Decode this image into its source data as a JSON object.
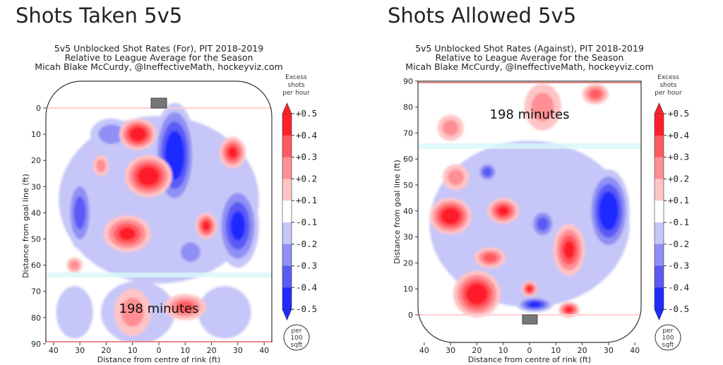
{
  "colorbar": {
    "title_lines": [
      "Excess",
      "shots",
      "per hour"
    ],
    "ticks": [
      "+0.5",
      "+0.4",
      "+0.3",
      "+0.2",
      "+0.1",
      "-0.1",
      "-0.2",
      "-0.3",
      "-0.4",
      "-0.5"
    ],
    "colors": [
      "#ff1f2a",
      "#ff5a5f",
      "#ff8f94",
      "#ffc4c6",
      "#ffffff",
      "#c6c6f8",
      "#8f8ff5",
      "#5a5af5",
      "#1f2aff"
    ],
    "unit_lines": [
      "per",
      "100",
      "sqft"
    ]
  },
  "chart_data": [
    {
      "type": "heatmap",
      "heading": "Shots Taken 5v5",
      "title_lines": [
        "5v5 Unblocked Shot Rates (For), PIT 2018-2019",
        "Relative to League Average for the Season",
        "Micah Blake McCurdy, @IneffectiveMath, hockeyviz.com"
      ],
      "xlabel": "Distance from centre of rink (ft)",
      "ylabel": "Distance from goal line (ft)",
      "xticks": [
        "40",
        "30",
        "20",
        "10",
        "0",
        "10",
        "20",
        "30",
        "40"
      ],
      "yticks": [
        "0",
        "10",
        "20",
        "30",
        "40",
        "50",
        "60",
        "70",
        "80",
        "90"
      ],
      "y_direction": "down",
      "annotation": "198 minutes",
      "regions": [
        {
          "x": 0,
          "y": 35,
          "rx": 38,
          "ry": 32,
          "value": -0.1
        },
        {
          "x": -8,
          "y": 78,
          "rx": 14,
          "ry": 12,
          "value": -0.1
        },
        {
          "x": 25,
          "y": 78,
          "rx": 10,
          "ry": 10,
          "value": -0.1
        },
        {
          "x": -32,
          "y": 78,
          "rx": 7,
          "ry": 10,
          "value": -0.1
        },
        {
          "x": 6,
          "y": 18,
          "rx": 8,
          "ry": 20,
          "value": -0.5
        },
        {
          "x": 30,
          "y": 45,
          "rx": 8,
          "ry": 16,
          "value": -0.4
        },
        {
          "x": -30,
          "y": 40,
          "rx": 5,
          "ry": 14,
          "value": -0.3
        },
        {
          "x": -18,
          "y": 10,
          "rx": 8,
          "ry": 6,
          "value": -0.2
        },
        {
          "x": 12,
          "y": 55,
          "rx": 6,
          "ry": 6,
          "value": -0.2
        },
        {
          "x": -8,
          "y": 10,
          "rx": 7,
          "ry": 6,
          "value": 0.5
        },
        {
          "x": -4,
          "y": 26,
          "rx": 9,
          "ry": 8,
          "value": 0.5
        },
        {
          "x": -12,
          "y": 48,
          "rx": 9,
          "ry": 7,
          "value": 0.4
        },
        {
          "x": 18,
          "y": 45,
          "rx": 4,
          "ry": 5,
          "value": 0.4
        },
        {
          "x": 28,
          "y": 17,
          "rx": 5,
          "ry": 6,
          "value": 0.4
        },
        {
          "x": -22,
          "y": 22,
          "rx": 3,
          "ry": 4,
          "value": 0.2
        },
        {
          "x": -10,
          "y": 78,
          "rx": 7,
          "ry": 9,
          "value": 0.2
        },
        {
          "x": 10,
          "y": 76,
          "rx": 8,
          "ry": 5,
          "value": 0.3
        },
        {
          "x": -32,
          "y": 60,
          "rx": 3,
          "ry": 3,
          "value": 0.2
        }
      ]
    },
    {
      "type": "heatmap",
      "heading": "Shots Allowed 5v5",
      "title_lines": [
        "5v5 Unblocked Shot Rates (Against), PIT 2018-2019",
        "Relative to League Average for the Season",
        "Micah Blake McCurdy, @IneffectiveMath, hockeyviz.com"
      ],
      "xlabel": "Distance from centre of rink (ft)",
      "ylabel": "Distance from goal line (ft)",
      "xticks": [
        "40",
        "30",
        "20",
        "10",
        "0",
        "10",
        "20",
        "30",
        "40"
      ],
      "yticks": [
        "0",
        "10",
        "20",
        "30",
        "40",
        "50",
        "60",
        "70",
        "80",
        "90"
      ],
      "y_direction": "up",
      "annotation": "198 minutes",
      "regions": [
        {
          "x": 0,
          "y": 35,
          "rx": 38,
          "ry": 32,
          "value": -0.1
        },
        {
          "x": 30,
          "y": 40,
          "rx": 8,
          "ry": 16,
          "value": -0.5
        },
        {
          "x": 2,
          "y": 4,
          "rx": 7,
          "ry": 3,
          "value": -0.4
        },
        {
          "x": -16,
          "y": 55,
          "rx": 4,
          "ry": 4,
          "value": -0.3
        },
        {
          "x": 5,
          "y": 35,
          "rx": 5,
          "ry": 6,
          "value": -0.3
        },
        {
          "x": -20,
          "y": 8,
          "rx": 9,
          "ry": 9,
          "value": 0.5
        },
        {
          "x": -30,
          "y": 38,
          "rx": 8,
          "ry": 7,
          "value": 0.5
        },
        {
          "x": -10,
          "y": 40,
          "rx": 6,
          "ry": 5,
          "value": 0.4
        },
        {
          "x": -28,
          "y": 53,
          "rx": 5,
          "ry": 5,
          "value": 0.2
        },
        {
          "x": 15,
          "y": 25,
          "rx": 6,
          "ry": 10,
          "value": 0.4
        },
        {
          "x": -15,
          "y": 22,
          "rx": 6,
          "ry": 4,
          "value": 0.3
        },
        {
          "x": 15,
          "y": 2,
          "rx": 4,
          "ry": 3,
          "value": 0.4
        },
        {
          "x": 0,
          "y": 10,
          "rx": 3,
          "ry": 3,
          "value": 0.4
        },
        {
          "x": 5,
          "y": 80,
          "rx": 7,
          "ry": 9,
          "value": 0.2
        },
        {
          "x": 25,
          "y": 85,
          "rx": 5,
          "ry": 4,
          "value": 0.3
        },
        {
          "x": -30,
          "y": 72,
          "rx": 5,
          "ry": 5,
          "value": 0.2
        }
      ]
    }
  ]
}
